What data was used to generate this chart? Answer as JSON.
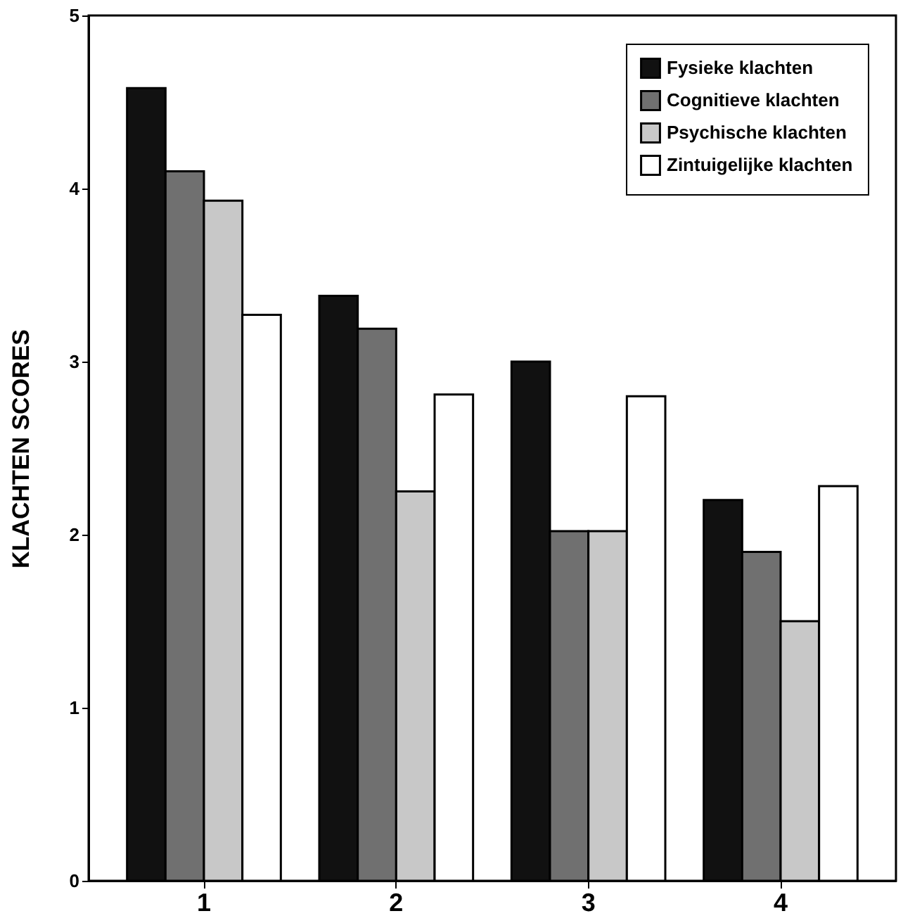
{
  "chart_data": {
    "type": "bar",
    "ylabel": "KLACHTEN SCORES",
    "categories": [
      "1",
      "2",
      "3",
      "4"
    ],
    "series": [
      {
        "name": "Fysieke klachten",
        "color": "#111111",
        "values": [
          4.58,
          3.38,
          3.0,
          2.2
        ]
      },
      {
        "name": "Cognitieve klachten",
        "color": "#707070",
        "values": [
          4.1,
          3.19,
          2.02,
          1.9
        ]
      },
      {
        "name": "Psychische klachten",
        "color": "#c8c8c8",
        "values": [
          3.93,
          2.25,
          2.02,
          1.5
        ]
      },
      {
        "name": "Zintuigelijke klachten",
        "color": "#ffffff",
        "values": [
          3.27,
          2.81,
          2.8,
          2.28
        ]
      }
    ],
    "ylim": [
      0,
      5
    ],
    "yticks": [
      0,
      1,
      2,
      3,
      4,
      5
    ],
    "grid": false,
    "legend": "top right"
  }
}
